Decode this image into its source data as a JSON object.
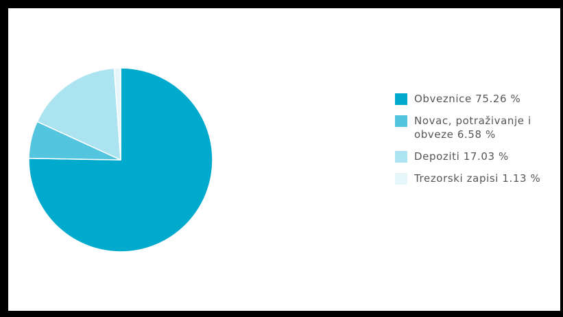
{
  "chart_data": {
    "type": "pie",
    "slices": [
      {
        "label": "Obveznice",
        "value": 75.26,
        "color": "#00aacd"
      },
      {
        "label": "Novac, potraživanje i obveze",
        "value": 6.58,
        "color": "#54c5de"
      },
      {
        "label": "Depoziti",
        "value": 17.03,
        "color": "#abe3f0"
      },
      {
        "label": "Trezorski zapisi",
        "value": 1.13,
        "color": "#e6f6fa"
      }
    ],
    "legend_position": "right",
    "value_suffix": " %"
  }
}
